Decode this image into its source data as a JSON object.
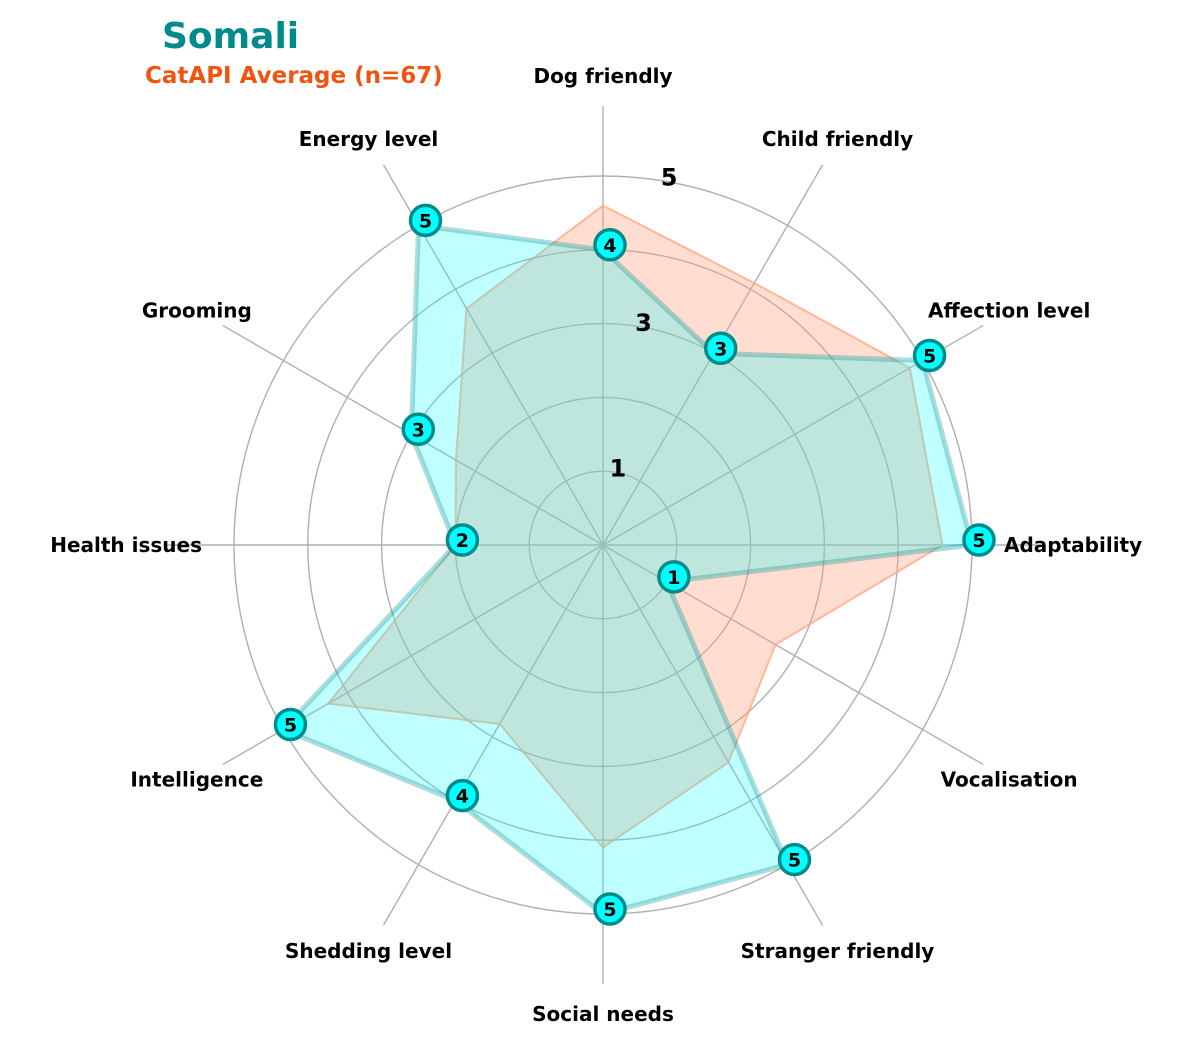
{
  "title": "Somali",
  "subtitle": "CatAPI Average (n=67)",
  "colors": {
    "title": "#008b8b",
    "subtitle": "#ee5511",
    "breed_fill": "#00ffff",
    "breed_edge": "#008b8b",
    "average_fill": "#ffa07a",
    "grid": "#b0b0b0"
  },
  "chart_data": {
    "type": "radar",
    "title": "Somali",
    "subtitle": "CatAPI Average (n=67)",
    "categories": [
      "Adaptability",
      "Affection level",
      "Child friendly",
      "Dog friendly",
      "Energy level",
      "Grooming",
      "Health issues",
      "Intelligence",
      "Shedding level",
      "Social needs",
      "Stranger friendly",
      "Vocalisation"
    ],
    "r_ticks": [
      "1",
      "3",
      "5"
    ],
    "r_range": [
      0,
      5
    ],
    "series": [
      {
        "name": "Somali",
        "values": [
          5,
          5,
          3,
          4,
          5,
          3,
          2,
          5,
          4,
          5,
          5,
          1
        ]
      },
      {
        "name": "CatAPI Average (n=67)",
        "values": [
          4.6,
          4.8,
          4.1,
          4.6,
          3.7,
          2.3,
          2.0,
          4.3,
          2.8,
          4.1,
          3.4,
          2.7
        ]
      }
    ],
    "grid": true
  }
}
